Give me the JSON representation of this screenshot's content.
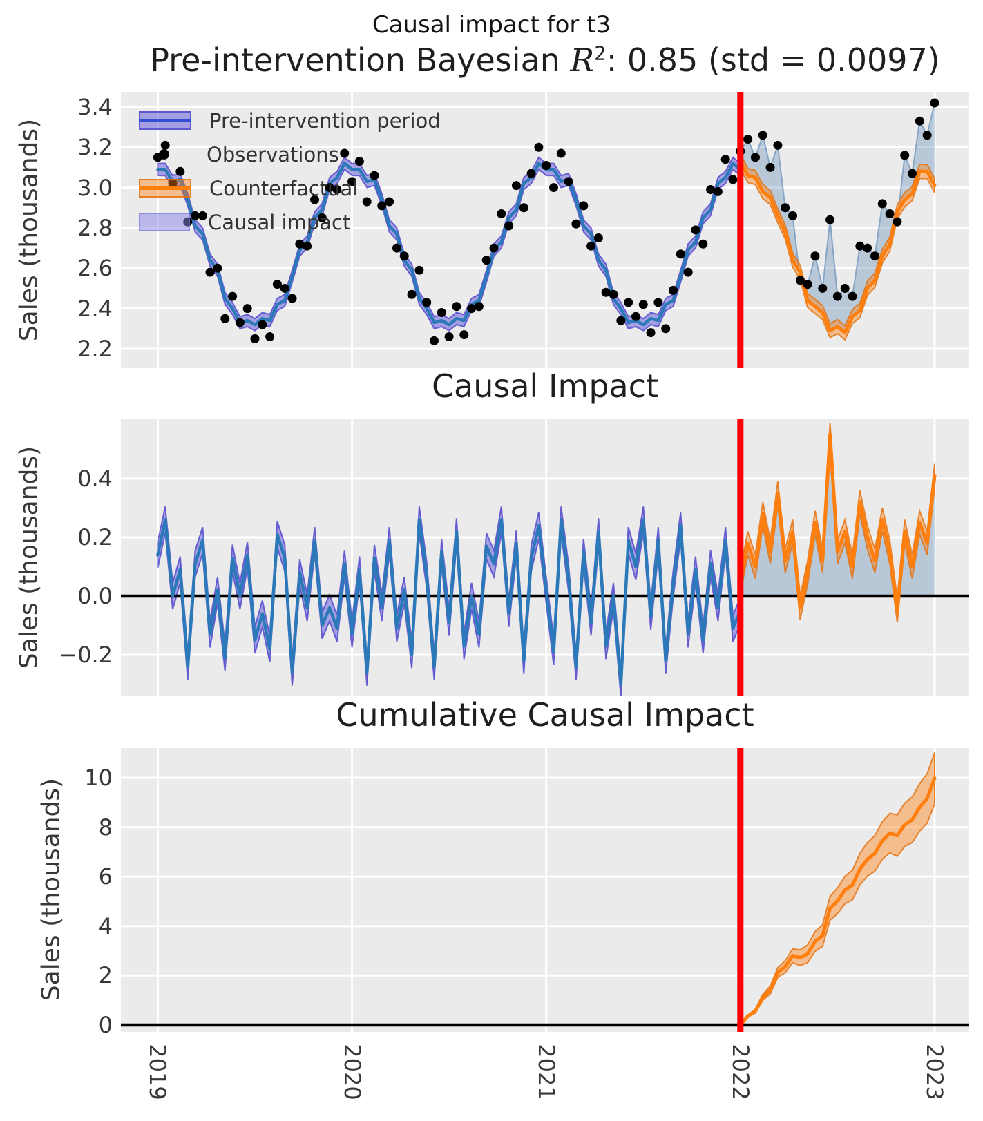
{
  "suptitle": "Causal impact for t3",
  "intervention": {
    "year": 2022,
    "line_color": "#ff0000"
  },
  "colors": {
    "axes_bg": "#ebebeb",
    "grid": "#ffffff",
    "observations": "#000000",
    "pre_line": "#2b79b9",
    "pre_band": "rgba(104,96,218,0.55)",
    "pre_band_edge": "rgba(84,74,204,0.85)",
    "legend_pre_line": "#3450d2",
    "cf_line": "#ff7f0e",
    "cf_band": "rgba(255,127,14,0.42)",
    "cf_band_edge": "rgba(228,110,10,0.8)",
    "impact_fill": "rgba(70,120,170,0.30)",
    "obs_line_post": "rgba(125,160,195,0.9)",
    "zero_line": "#000000",
    "ci_swatch": "rgba(135,133,230,0.5)",
    "ci_swatch_edge": "rgba(110,105,220,0.55)"
  },
  "x_axis": {
    "ticks": [
      2019,
      2020,
      2021,
      2022,
      2023
    ],
    "labels": [
      "2019",
      "2020",
      "2021",
      "2022",
      "2023"
    ],
    "xlim": [
      2018.81,
      2023.178
    ]
  },
  "chart_data": [
    {
      "type": "line",
      "title": {
        "prefix": "Pre-intervention Bayesian ",
        "math": "R",
        "sup": "2",
        "suffix": ": 0.85 (std = 0.0097)"
      },
      "ylabel": "Sales (thousands)",
      "ylim": [
        2.104,
        3.475
      ],
      "yticks": [
        {
          "v": 3.4,
          "label": "3.4"
        },
        {
          "v": 3.2,
          "label": "3.2"
        },
        {
          "v": 3.0,
          "label": "3.0"
        },
        {
          "v": 2.8,
          "label": "2.8"
        },
        {
          "v": 2.6,
          "label": "2.6"
        },
        {
          "v": 2.4,
          "label": "2.4"
        },
        {
          "v": 2.2,
          "label": "2.2"
        }
      ],
      "x_start": 2019,
      "x_step_years": 0.0384615,
      "n_points": 105,
      "intervention_index": 78,
      "legend": [
        {
          "label": "Pre-intervention period",
          "swatch": "band-line-blue"
        },
        {
          "label": "Observations",
          "swatch": "black-dot"
        },
        {
          "label": "Counterfactual",
          "swatch": "band-line-orange"
        },
        {
          "label": "Causal impact",
          "swatch": "light-blue-patch"
        }
      ],
      "series": [
        {
          "name": "Observations",
          "type": "scatter",
          "values": [
            3.15,
            3.21,
            3.02,
            3.08,
            2.83,
            2.86,
            2.86,
            2.58,
            2.6,
            2.35,
            2.46,
            2.33,
            2.4,
            2.25,
            2.32,
            2.26,
            2.52,
            2.5,
            2.45,
            2.72,
            2.71,
            2.94,
            2.85,
            3.0,
            2.99,
            3.17,
            3.03,
            3.13,
            2.93,
            3.06,
            2.91,
            2.93,
            2.7,
            2.66,
            2.47,
            2.59,
            2.43,
            2.24,
            2.38,
            2.26,
            2.41,
            2.27,
            2.4,
            2.41,
            2.64,
            2.7,
            2.87,
            2.81,
            3.01,
            2.9,
            3.07,
            3.2,
            3.11,
            3.0,
            3.17,
            3.03,
            2.82,
            2.91,
            2.71,
            2.75,
            2.48,
            2.47,
            2.34,
            2.43,
            2.36,
            2.42,
            2.28,
            2.43,
            2.3,
            2.49,
            2.67,
            2.58,
            2.79,
            2.72,
            2.99,
            2.98,
            3.14,
            3.04,
            3.18,
            3.24,
            3.15,
            3.26,
            3.1,
            3.21,
            2.9,
            2.86,
            2.54,
            2.52,
            2.66,
            2.5,
            2.84,
            2.46,
            2.5,
            2.46,
            2.71,
            2.7,
            2.66,
            2.92,
            2.87,
            2.83,
            3.16,
            3.07,
            3.33,
            3.26,
            3.42
          ]
        },
        {
          "name": "Pre-intervention period",
          "type": "line+band",
          "start_index": 0,
          "band_halfwidth": 0.03,
          "values": [
            3.09,
            3.09,
            3.03,
            3.04,
            2.94,
            2.81,
            2.77,
            2.64,
            2.59,
            2.45,
            2.4,
            2.33,
            2.34,
            2.32,
            2.35,
            2.34,
            2.42,
            2.44,
            2.56,
            2.69,
            2.73,
            2.85,
            2.89,
            3.02,
            3.05,
            3.12,
            3.09,
            3.09,
            3.03,
            3.04,
            2.94,
            2.81,
            2.77,
            2.64,
            2.59,
            2.45,
            2.4,
            2.33,
            2.34,
            2.32,
            2.35,
            2.34,
            2.42,
            2.44,
            2.56,
            2.69,
            2.73,
            2.85,
            2.89,
            3.02,
            3.05,
            3.12,
            3.09,
            3.09,
            3.03,
            3.04,
            2.94,
            2.81,
            2.77,
            2.64,
            2.59,
            2.45,
            2.4,
            2.33,
            2.34,
            2.32,
            2.35,
            2.34,
            2.42,
            2.44,
            2.56,
            2.69,
            2.73,
            2.85,
            2.89,
            3.02,
            3.05,
            3.12,
            3.09
          ]
        },
        {
          "name": "Counterfactual",
          "type": "line+band",
          "start_index": 78,
          "band_halfwidth": 0.035,
          "values": [
            3.13,
            3.06,
            3.05,
            2.98,
            2.95,
            2.86,
            2.78,
            2.64,
            2.58,
            2.44,
            2.41,
            2.38,
            2.29,
            2.31,
            2.28,
            2.36,
            2.39,
            2.5,
            2.54,
            2.66,
            2.72,
            2.88,
            2.94,
            2.97,
            3.08,
            3.08,
            3.01
          ]
        },
        {
          "name": "Causal impact",
          "type": "fill-between",
          "between": [
            "Observations",
            "Counterfactual"
          ],
          "start_index": 78
        }
      ]
    },
    {
      "type": "line",
      "title": "Causal Impact",
      "ylabel": "Sales (thousands)",
      "ylim": [
        -0.341,
        0.602
      ],
      "yticks": [
        {
          "v": 0.4,
          "label": "0.4"
        },
        {
          "v": 0.2,
          "label": "0.2"
        },
        {
          "v": 0.0,
          "label": "0.0"
        },
        {
          "v": -0.2,
          "label": "−0.2"
        }
      ],
      "x_start": 2019,
      "x_step_years": 0.0384615,
      "n_points": 105,
      "intervention_index": 78,
      "series": [
        {
          "name": "Pre-intervention impact",
          "type": "line+band",
          "start_index": 0,
          "band_halfwidth": 0.045,
          "values": [
            0.14,
            0.26,
            0.0,
            0.09,
            -0.24,
            0.11,
            0.19,
            -0.13,
            0.02,
            -0.21,
            0.13,
            0.0,
            0.14,
            -0.15,
            -0.06,
            -0.18,
            0.21,
            0.13,
            -0.26,
            0.08,
            -0.04,
            0.19,
            -0.1,
            -0.04,
            -0.11,
            0.11,
            -0.13,
            0.09,
            -0.26,
            0.13,
            -0.04,
            0.19,
            -0.11,
            0.02,
            -0.2,
            0.26,
            0.07,
            -0.24,
            0.15,
            -0.09,
            0.22,
            -0.17,
            0.0,
            -0.13,
            0.17,
            0.11,
            0.26,
            -0.06,
            0.18,
            -0.22,
            0.13,
            0.24,
            0.02,
            -0.19,
            0.26,
            0.06,
            -0.24,
            0.15,
            -0.09,
            0.22,
            -0.17,
            0.0,
            -0.3,
            0.19,
            0.1,
            0.26,
            -0.07,
            0.19,
            -0.22,
            0.04,
            0.24,
            -0.13,
            0.09,
            -0.15,
            0.11,
            -0.04,
            0.19,
            -0.11,
            -0.05
          ]
        },
        {
          "name": "Post-intervention impact",
          "type": "line+band+fill0",
          "start_index": 78,
          "band_halfwidth": 0.04,
          "values": [
            0.05,
            0.18,
            0.1,
            0.28,
            0.15,
            0.35,
            0.12,
            0.22,
            -0.04,
            0.08,
            0.25,
            0.12,
            0.55,
            0.15,
            0.22,
            0.1,
            0.32,
            0.2,
            0.12,
            0.26,
            0.15,
            -0.05,
            0.22,
            0.1,
            0.25,
            0.18,
            0.41
          ]
        }
      ]
    },
    {
      "type": "line",
      "title": "Cumulative Causal Impact",
      "ylabel": "Sales (thousands)",
      "ylim": [
        -0.28,
        11.2
      ],
      "yticks": [
        {
          "v": 10,
          "label": "10"
        },
        {
          "v": 8,
          "label": "8"
        },
        {
          "v": 6,
          "label": "6"
        },
        {
          "v": 4,
          "label": "4"
        },
        {
          "v": 2,
          "label": "2"
        },
        {
          "v": 0,
          "label": "0"
        }
      ],
      "x_start": 2022,
      "x_step_years": 0.0384615,
      "n_points": 27,
      "series": [
        {
          "name": "Cumulative causal impact",
          "type": "line+band",
          "start_index": 78,
          "band_halfwidth_growth_per_step": 0.04,
          "values": [
            0,
            0.36,
            0.56,
            1.12,
            1.42,
            2.12,
            2.36,
            2.8,
            2.72,
            2.88,
            3.38,
            3.62,
            4.72,
            5.02,
            5.46,
            5.66,
            6.3,
            6.7,
            6.94,
            7.46,
            7.76,
            7.66,
            8.1,
            8.3,
            8.8,
            9.16,
            9.98
          ]
        }
      ]
    }
  ]
}
